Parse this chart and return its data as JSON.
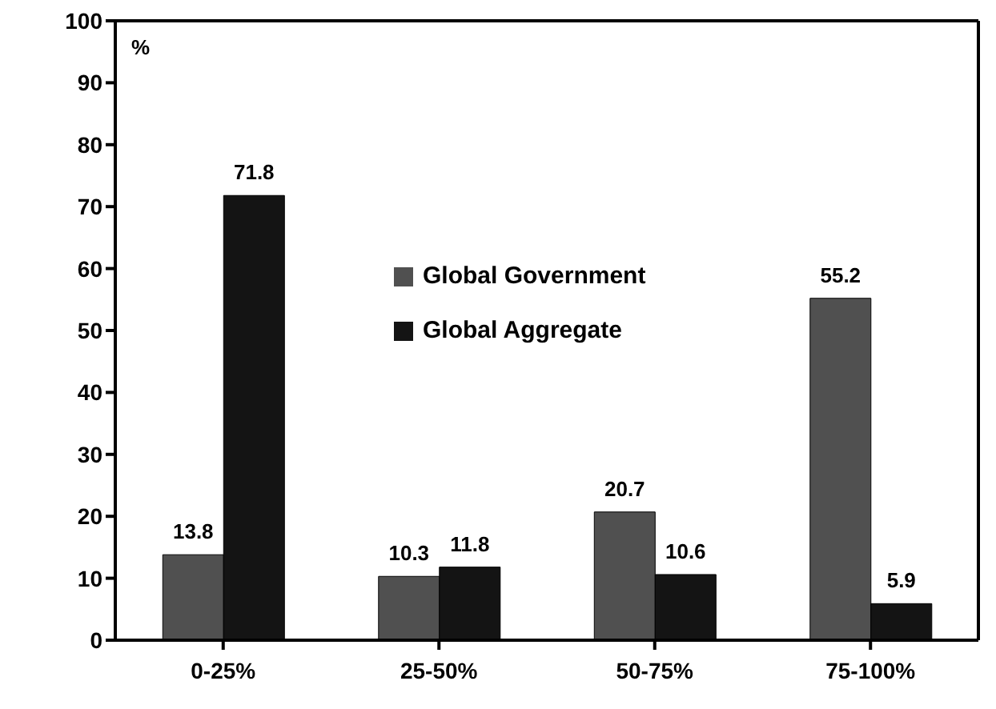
{
  "chart_data": {
    "type": "bar",
    "annotations": [
      "%"
    ],
    "categories": [
      "0-25%",
      "25-50%",
      "50-75%",
      "75-100%"
    ],
    "series": [
      {
        "name": "Global Government",
        "color": "#505050",
        "values": [
          13.8,
          10.3,
          20.7,
          55.2
        ]
      },
      {
        "name": "Global Aggregate",
        "color": "#141414",
        "values": [
          71.8,
          11.8,
          10.6,
          5.9
        ]
      }
    ],
    "ylim": [
      0,
      100
    ],
    "yticks": [
      0,
      10,
      20,
      30,
      40,
      50,
      60,
      70,
      80,
      90,
      100
    ],
    "grid": false,
    "legend": "center",
    "data_labels": true
  }
}
